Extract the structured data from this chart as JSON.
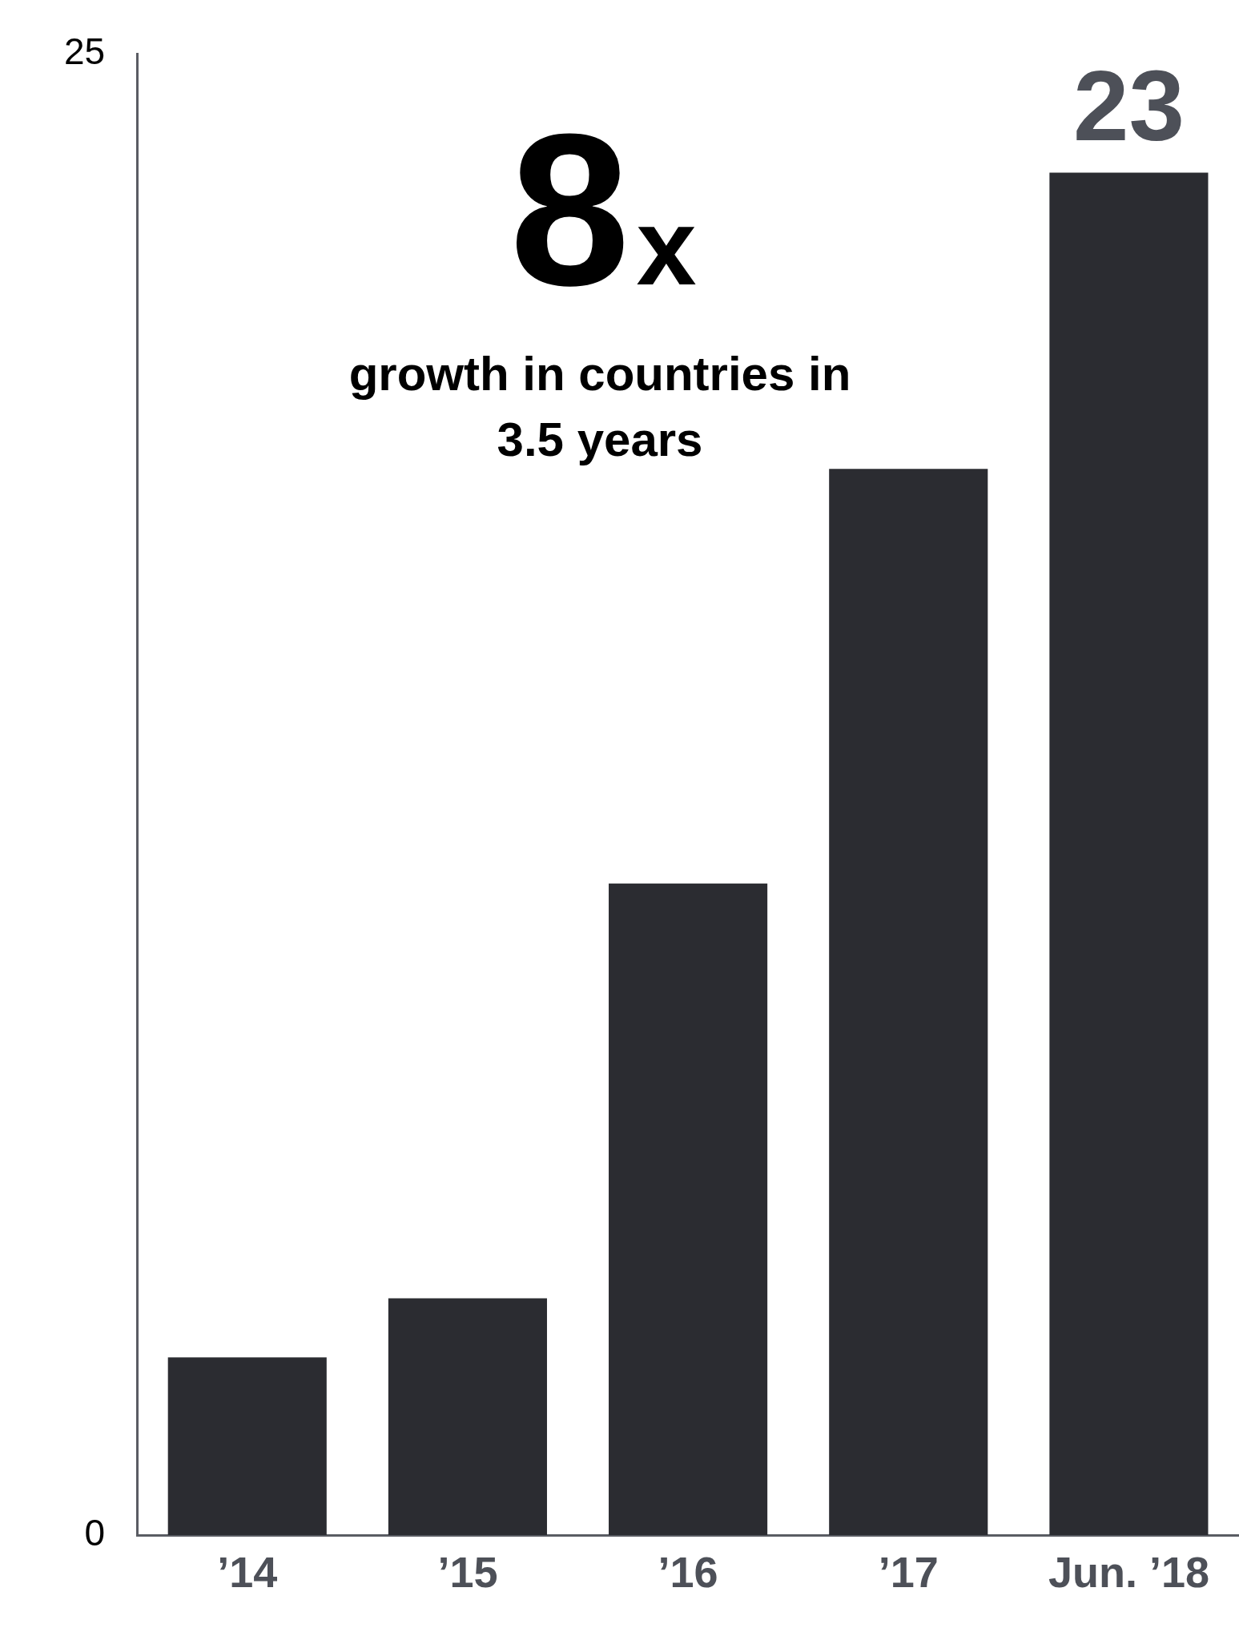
{
  "chart_data": {
    "type": "bar",
    "categories": [
      "’14",
      "’15",
      "’16",
      "’17",
      "Jun. ’18"
    ],
    "values": [
      3,
      4,
      11,
      18,
      23
    ],
    "value_labels": [
      null,
      null,
      null,
      null,
      "23"
    ],
    "color": "#2b2c31",
    "ylim": [
      0,
      25
    ],
    "yticks": [
      0,
      25
    ],
    "grid": false,
    "legend": false,
    "annotations": [
      "8x",
      "growth in countries in 3.5 years"
    ]
  }
}
